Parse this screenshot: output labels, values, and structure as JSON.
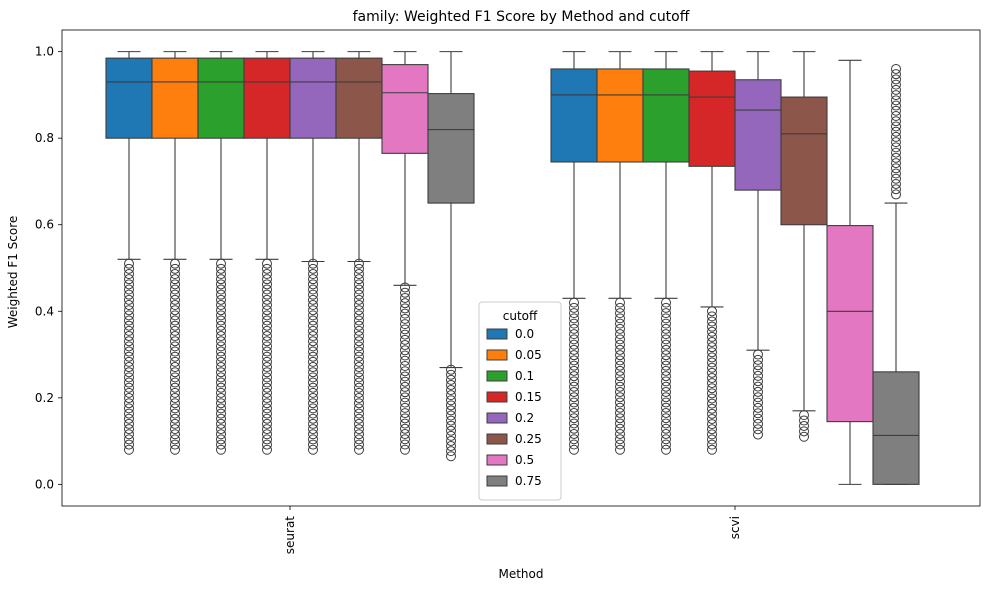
{
  "chart_data": {
    "type": "box",
    "title": "family: Weighted F1 Score by Method and cutoff",
    "xlabel": "Method",
    "ylabel": "Weighted F1 Score",
    "ylim": [
      -0.05,
      1.05
    ],
    "yticks": [
      "0.0",
      "0.2",
      "0.4",
      "0.6",
      "0.8",
      "1.0"
    ],
    "categories": [
      "seurat",
      "scvi"
    ],
    "legend": {
      "title": "cutoff",
      "position": "lower-center"
    },
    "series": [
      {
        "name": "0.0",
        "color": "#1f77b4",
        "boxes": [
          {
            "whisker_low": 0.52,
            "q1": 0.8,
            "median": 0.93,
            "q3": 0.985,
            "whisker_high": 1.0,
            "outlier_range": [
              0.08,
              0.51
            ]
          },
          {
            "whisker_low": 0.43,
            "q1": 0.745,
            "median": 0.9,
            "q3": 0.96,
            "whisker_high": 1.0,
            "outlier_range": [
              0.08,
              0.42
            ]
          }
        ]
      },
      {
        "name": "0.05",
        "color": "#ff7f0e",
        "boxes": [
          {
            "whisker_low": 0.52,
            "q1": 0.8,
            "median": 0.93,
            "q3": 0.985,
            "whisker_high": 1.0,
            "outlier_range": [
              0.08,
              0.51
            ]
          },
          {
            "whisker_low": 0.43,
            "q1": 0.745,
            "median": 0.9,
            "q3": 0.96,
            "whisker_high": 1.0,
            "outlier_range": [
              0.08,
              0.42
            ]
          }
        ]
      },
      {
        "name": "0.1",
        "color": "#2ca02c",
        "boxes": [
          {
            "whisker_low": 0.52,
            "q1": 0.8,
            "median": 0.93,
            "q3": 0.985,
            "whisker_high": 1.0,
            "outlier_range": [
              0.08,
              0.51
            ]
          },
          {
            "whisker_low": 0.43,
            "q1": 0.745,
            "median": 0.9,
            "q3": 0.96,
            "whisker_high": 1.0,
            "outlier_range": [
              0.08,
              0.42
            ]
          }
        ]
      },
      {
        "name": "0.15",
        "color": "#d62728",
        "boxes": [
          {
            "whisker_low": 0.52,
            "q1": 0.8,
            "median": 0.93,
            "q3": 0.985,
            "whisker_high": 1.0,
            "outlier_range": [
              0.08,
              0.51
            ]
          },
          {
            "whisker_low": 0.41,
            "q1": 0.735,
            "median": 0.895,
            "q3": 0.955,
            "whisker_high": 1.0,
            "outlier_range": [
              0.08,
              0.4
            ]
          }
        ]
      },
      {
        "name": "0.2",
        "color": "#9467bd",
        "boxes": [
          {
            "whisker_low": 0.515,
            "q1": 0.8,
            "median": 0.93,
            "q3": 0.985,
            "whisker_high": 1.0,
            "outlier_range": [
              0.08,
              0.51
            ]
          },
          {
            "whisker_low": 0.31,
            "q1": 0.68,
            "median": 0.865,
            "q3": 0.935,
            "whisker_high": 1.0,
            "outlier_range": [
              0.115,
              0.3
            ]
          }
        ]
      },
      {
        "name": "0.25",
        "color": "#8c564b",
        "boxes": [
          {
            "whisker_low": 0.515,
            "q1": 0.8,
            "median": 0.93,
            "q3": 0.985,
            "whisker_high": 1.0,
            "outlier_range": [
              0.08,
              0.51
            ]
          },
          {
            "whisker_low": 0.17,
            "q1": 0.6,
            "median": 0.81,
            "q3": 0.895,
            "whisker_high": 1.0,
            "outlier_range": [
              0.11,
              0.16
            ]
          }
        ]
      },
      {
        "name": "0.5",
        "color": "#e377c2",
        "boxes": [
          {
            "whisker_low": 0.46,
            "q1": 0.765,
            "median": 0.905,
            "q3": 0.97,
            "whisker_high": 1.0,
            "outlier_range": [
              0.08,
              0.455
            ]
          },
          {
            "whisker_low": 0.0,
            "q1": 0.145,
            "median": 0.4,
            "q3": 0.598,
            "whisker_high": 0.98,
            "outlier_range": null
          }
        ]
      },
      {
        "name": "0.75",
        "color": "#7f7f7f",
        "boxes": [
          {
            "whisker_low": 0.27,
            "q1": 0.65,
            "median": 0.82,
            "q3": 0.903,
            "whisker_high": 1.0,
            "outlier_range": [
              0.065,
              0.265
            ]
          },
          {
            "whisker_low": 0.0,
            "q1": 0.0,
            "median": 0.113,
            "q3": 0.26,
            "whisker_high": 0.65,
            "outlier_range": [
              0.67,
              0.96
            ]
          }
        ]
      }
    ]
  }
}
